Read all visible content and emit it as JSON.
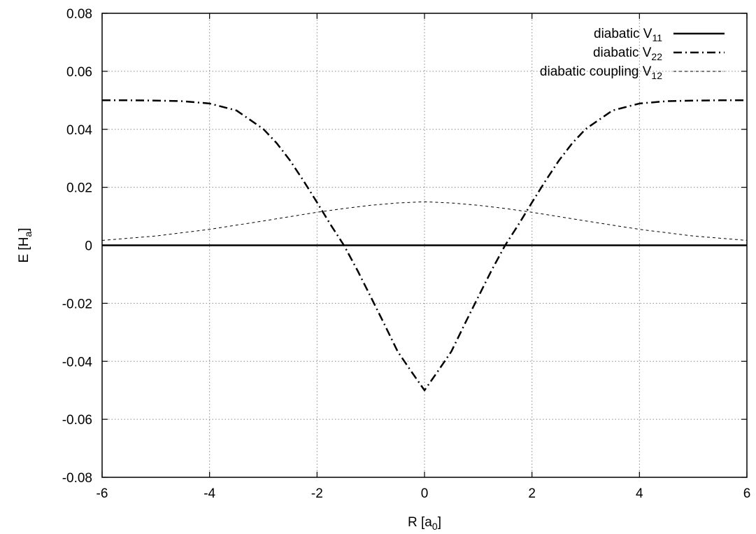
{
  "chart_data": {
    "type": "line",
    "title": "",
    "xlabel": {
      "main": "R [a",
      "sub": "0",
      "tail": "]"
    },
    "ylabel": {
      "main": "E [H",
      "sub": "a",
      "tail": "]"
    },
    "xlim": [
      -6,
      6
    ],
    "ylim": [
      -0.08,
      0.08
    ],
    "xticks": [
      -6,
      -4,
      -2,
      0,
      2,
      4,
      6
    ],
    "yticks": [
      -0.08,
      -0.06,
      -0.04,
      -0.02,
      0,
      0.02,
      0.04,
      0.06,
      0.08
    ],
    "xtick_labels": [
      "-6",
      "-4",
      "-2",
      "0",
      "2",
      "4",
      "6"
    ],
    "ytick_labels": [
      "-0.08",
      "-0.06",
      "-0.04",
      "-0.02",
      "0",
      "0.02",
      "0.04",
      "0.06",
      "0.08"
    ],
    "grid": true,
    "legend_position": "top-right",
    "series": [
      {
        "id": "v11",
        "name": {
          "main": "diabatic V",
          "sub": "11"
        },
        "style": "solid",
        "color": "#000000",
        "x": [
          -6,
          -5,
          -4,
          -3,
          -2,
          -1,
          0,
          1,
          2,
          3,
          4,
          5,
          6
        ],
        "y": [
          0,
          0,
          0,
          0,
          0,
          0,
          0,
          0,
          0,
          0,
          0,
          0,
          0
        ]
      },
      {
        "id": "v22",
        "name": {
          "main": "diabatic V",
          "sub": "22"
        },
        "style": "dash-dot",
        "color": "#000000",
        "x": [
          -6,
          -5.5,
          -5,
          -4.5,
          -4,
          -3.5,
          -3,
          -2.75,
          -2.5,
          -2.25,
          -2,
          -1.75,
          -1.5,
          -1.25,
          -1,
          -0.75,
          -0.5,
          -0.25,
          0,
          0.25,
          0.5,
          0.75,
          1,
          1.25,
          1.5,
          1.75,
          2,
          2.25,
          2.5,
          2.75,
          3,
          3.5,
          4,
          4.5,
          5,
          5.5,
          6
        ],
        "y": [
          0.05,
          0.05,
          0.0499,
          0.0497,
          0.0489,
          0.0465,
          0.0401,
          0.0352,
          0.0292,
          0.0222,
          0.0148,
          0.0072,
          0.0,
          -0.0086,
          -0.0178,
          -0.0271,
          -0.0366,
          -0.0434,
          -0.05,
          -0.0434,
          -0.0366,
          -0.0271,
          -0.0178,
          -0.0086,
          0.0,
          0.0072,
          0.0148,
          0.0222,
          0.0292,
          0.0352,
          0.0401,
          0.0465,
          0.0489,
          0.0497,
          0.0499,
          0.05,
          0.05
        ]
      },
      {
        "id": "v12",
        "name": {
          "main": "diabatic coupling V",
          "sub": "12"
        },
        "style": "dashed",
        "color": "#000000",
        "x": [
          -6,
          -5,
          -4,
          -3,
          -2,
          -1.5,
          -1,
          -0.5,
          0,
          0.5,
          1,
          1.5,
          2,
          3,
          4,
          5,
          6
        ],
        "y": [
          0.0017,
          0.0032,
          0.0055,
          0.0084,
          0.0114,
          0.0127,
          0.0138,
          0.0146,
          0.015,
          0.0146,
          0.0138,
          0.0127,
          0.0114,
          0.0084,
          0.0055,
          0.0032,
          0.0017
        ]
      }
    ]
  }
}
